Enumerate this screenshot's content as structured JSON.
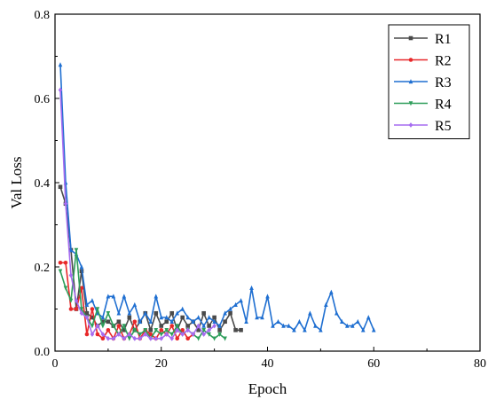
{
  "chart_data": {
    "type": "line",
    "title": "",
    "xlabel": "Epoch",
    "ylabel": "Val Loss",
    "xlim": [
      0,
      80
    ],
    "ylim": [
      0,
      0.8
    ],
    "xticks": [
      0,
      20,
      40,
      60,
      80
    ],
    "yticks": [
      0.0,
      0.2,
      0.4,
      0.6,
      0.8
    ],
    "xtick_labels": [
      "0",
      "20",
      "40",
      "60",
      "80"
    ],
    "ytick_labels": [
      "0.0",
      "0.2",
      "0.4",
      "0.6",
      "0.8"
    ],
    "grid": false,
    "legend_position": "top-right",
    "series": [
      {
        "name": "R1",
        "color": "#4a4a4a",
        "marker": "square",
        "x": [
          1,
          2,
          3,
          4,
          5,
          6,
          7,
          8,
          9,
          10,
          11,
          12,
          13,
          14,
          15,
          16,
          17,
          18,
          19,
          20,
          21,
          22,
          23,
          24,
          25,
          26,
          27,
          28,
          29,
          30,
          31,
          32,
          33,
          34,
          35
        ],
        "y": [
          0.39,
          0.35,
          0.24,
          0.1,
          0.19,
          0.09,
          0.08,
          0.06,
          0.07,
          0.07,
          0.06,
          0.07,
          0.05,
          0.08,
          0.05,
          0.07,
          0.09,
          0.05,
          0.09,
          0.06,
          0.07,
          0.09,
          0.05,
          0.08,
          0.06,
          0.07,
          0.05,
          0.09,
          0.06,
          0.08,
          0.05,
          0.07,
          0.09,
          0.05,
          0.05
        ]
      },
      {
        "name": "R2",
        "color": "#e8282a",
        "marker": "circle",
        "x": [
          1,
          2,
          3,
          4,
          5,
          6,
          7,
          8,
          9,
          10,
          11,
          12,
          13,
          14,
          15,
          16,
          17,
          18,
          19,
          20,
          21,
          22,
          23,
          24,
          25,
          26
        ],
        "y": [
          0.21,
          0.21,
          0.1,
          0.1,
          0.15,
          0.04,
          0.1,
          0.04,
          0.03,
          0.05,
          0.03,
          0.06,
          0.03,
          0.04,
          0.07,
          0.03,
          0.05,
          0.04,
          0.03,
          0.05,
          0.04,
          0.06,
          0.03,
          0.05,
          0.03,
          0.04
        ]
      },
      {
        "name": "R3",
        "color": "#1f6fd1",
        "marker": "triangle-up",
        "x": [
          1,
          2,
          3,
          4,
          5,
          6,
          7,
          8,
          9,
          10,
          11,
          12,
          13,
          14,
          15,
          16,
          17,
          18,
          19,
          20,
          21,
          22,
          23,
          24,
          25,
          26,
          27,
          28,
          29,
          30,
          31,
          32,
          33,
          34,
          35,
          36,
          37,
          38,
          39,
          40,
          41,
          42,
          43,
          44,
          45,
          46,
          47,
          48,
          49,
          50,
          51,
          52,
          53,
          54,
          55,
          56,
          57,
          58,
          59,
          60
        ],
        "y": [
          0.68,
          0.4,
          0.24,
          0.23,
          0.2,
          0.11,
          0.12,
          0.09,
          0.08,
          0.13,
          0.13,
          0.09,
          0.13,
          0.09,
          0.11,
          0.07,
          0.09,
          0.07,
          0.13,
          0.08,
          0.08,
          0.07,
          0.09,
          0.1,
          0.08,
          0.07,
          0.08,
          0.06,
          0.08,
          0.07,
          0.06,
          0.09,
          0.1,
          0.11,
          0.12,
          0.07,
          0.15,
          0.08,
          0.08,
          0.13,
          0.06,
          0.07,
          0.06,
          0.06,
          0.05,
          0.07,
          0.05,
          0.09,
          0.06,
          0.05,
          0.11,
          0.14,
          0.09,
          0.07,
          0.06,
          0.06,
          0.07,
          0.05,
          0.08,
          0.05
        ]
      },
      {
        "name": "R4",
        "color": "#2e9e5b",
        "marker": "triangle-down",
        "x": [
          1,
          2,
          3,
          4,
          5,
          6,
          7,
          8,
          9,
          10,
          11,
          12,
          13,
          14,
          15,
          16,
          17,
          18,
          19,
          20,
          21,
          22,
          23,
          24,
          25,
          26,
          27,
          28,
          29,
          30,
          31,
          32
        ],
        "y": [
          0.19,
          0.15,
          0.12,
          0.24,
          0.1,
          0.08,
          0.06,
          0.1,
          0.06,
          0.09,
          0.06,
          0.04,
          0.06,
          0.03,
          0.05,
          0.04,
          0.05,
          0.03,
          0.05,
          0.04,
          0.05,
          0.04,
          0.06,
          0.04,
          0.05,
          0.04,
          0.03,
          0.05,
          0.04,
          0.03,
          0.04,
          0.03
        ]
      },
      {
        "name": "R5",
        "color": "#a66cf0",
        "marker": "diamond",
        "x": [
          1,
          2,
          3,
          4,
          5,
          6,
          7,
          8,
          9,
          10,
          11,
          12,
          13,
          14,
          15,
          16,
          17,
          18,
          19,
          20,
          21,
          22,
          23,
          24,
          25,
          26,
          27,
          28,
          29,
          30
        ],
        "y": [
          0.62,
          0.35,
          0.18,
          0.12,
          0.09,
          0.08,
          0.04,
          0.06,
          0.04,
          0.03,
          0.03,
          0.04,
          0.03,
          0.04,
          0.03,
          0.03,
          0.04,
          0.03,
          0.03,
          0.03,
          0.04,
          0.03,
          0.05,
          0.04,
          0.05,
          0.04,
          0.06,
          0.04,
          0.05,
          0.06
        ]
      }
    ]
  }
}
